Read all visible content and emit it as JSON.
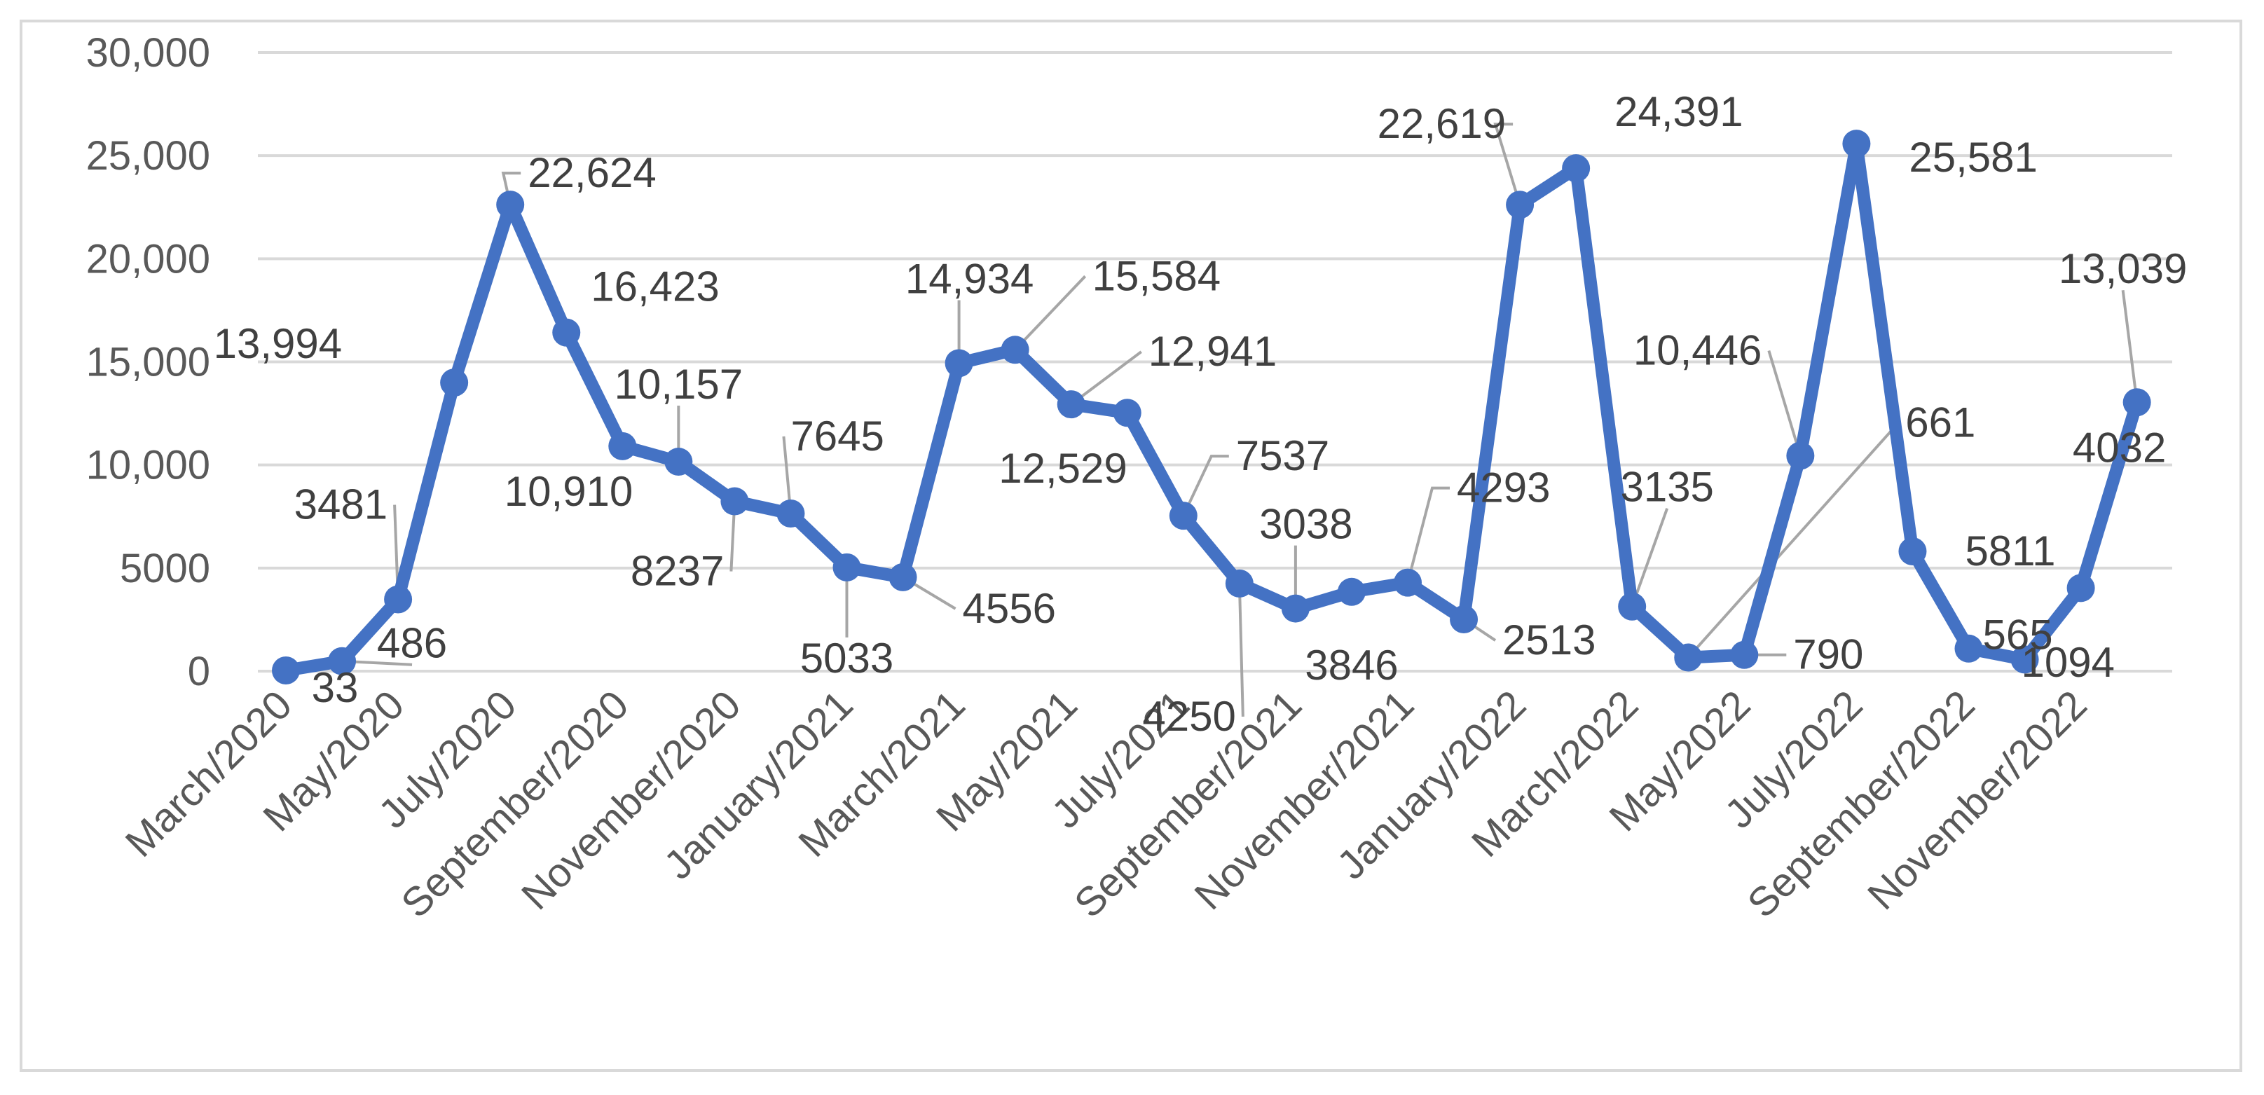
{
  "chart_data": {
    "type": "line",
    "title": "",
    "xlabel": "",
    "ylabel": "",
    "ylim": [
      0,
      30000
    ],
    "yticks": [
      0,
      5000,
      10000,
      15000,
      20000,
      25000,
      30000
    ],
    "ytick_labels": [
      "0",
      "5000",
      "10,000",
      "15,000",
      "20,000",
      "25,000",
      "30,000"
    ],
    "grid": true,
    "legend": "none",
    "line_color": "#4472C4",
    "x_tick_labels": [
      "March/2020",
      "May/2020",
      "July/2020",
      "September/2020",
      "November/2020",
      "January/2021",
      "March/2021",
      "May/2021",
      "July/2021",
      "September/2021",
      "November/2021",
      "January/2022",
      "March/2022",
      "May/2022",
      "July/2022",
      "September/2022",
      "November/2022"
    ],
    "categories": [
      "March/2020",
      "April/2020",
      "May/2020",
      "June/2020",
      "July/2020",
      "August/2020",
      "September/2020",
      "October/2020",
      "November/2020",
      "December/2020",
      "January/2021",
      "February/2021",
      "March/2021",
      "April/2021",
      "May/2021",
      "June/2021",
      "July/2021",
      "August/2021",
      "September/2021",
      "October/2021",
      "November/2021",
      "December/2021",
      "January/2022",
      "February/2022",
      "March/2022",
      "April/2022",
      "May/2022",
      "June/2022",
      "July/2022",
      "August/2022",
      "September/2022",
      "October/2022",
      "November/2022",
      "December/2022"
    ],
    "values": [
      33,
      486,
      3481,
      13994,
      22624,
      16423,
      10910,
      10157,
      8237,
      7645,
      5033,
      4556,
      14934,
      15584,
      12941,
      12529,
      7537,
      4250,
      3038,
      3846,
      4293,
      2513,
      22619,
      24391,
      3135,
      661,
      790,
      10446,
      25581,
      5811,
      1094,
      565,
      4032,
      13039
    ],
    "data_labels": [
      "33",
      "486",
      "3481",
      "13,994",
      "22,624",
      "16,423",
      "10,910",
      "10,157",
      "8237",
      "7645",
      "5033",
      "4556",
      "14,934",
      "15,584",
      "12,941",
      "12,529",
      "7537",
      "4250",
      "3038",
      "3846",
      "4293",
      "2513",
      "22,619",
      "24,391",
      "3135",
      "661",
      "790",
      "10,446",
      "25,581",
      "5811",
      "1094",
      "565",
      "4032",
      "13,039"
    ]
  }
}
